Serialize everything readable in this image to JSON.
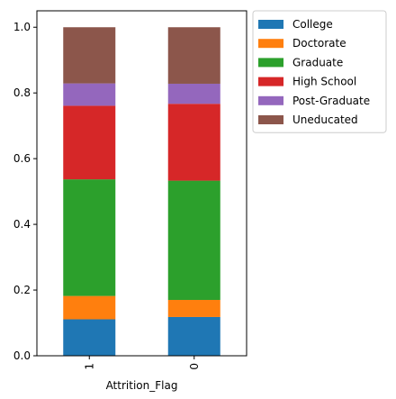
{
  "chart_data": {
    "type": "bar",
    "stacked": true,
    "normalized": true,
    "categories": [
      "1",
      "0"
    ],
    "xlabel": "Attrition_Flag",
    "ylabel": "",
    "ylim": [
      0,
      1.05
    ],
    "yticks": [
      "0.0",
      "0.2",
      "0.4",
      "0.6",
      "0.8",
      "1.0"
    ],
    "legend_position": "outside upper right",
    "series": [
      {
        "name": "College",
        "color": "#1f77b4",
        "values": [
          0.111,
          0.118
        ]
      },
      {
        "name": "Doctorate",
        "color": "#ff7f0e",
        "values": [
          0.071,
          0.052
        ]
      },
      {
        "name": "Graduate",
        "color": "#2ca02c",
        "values": [
          0.355,
          0.363
        ]
      },
      {
        "name": "High School",
        "color": "#d62728",
        "values": [
          0.224,
          0.234
        ]
      },
      {
        "name": "Post-Graduate",
        "color": "#9467bd",
        "values": [
          0.068,
          0.061
        ]
      },
      {
        "name": "Uneducated",
        "color": "#8c564b",
        "values": [
          0.171,
          0.172
        ]
      }
    ]
  }
}
